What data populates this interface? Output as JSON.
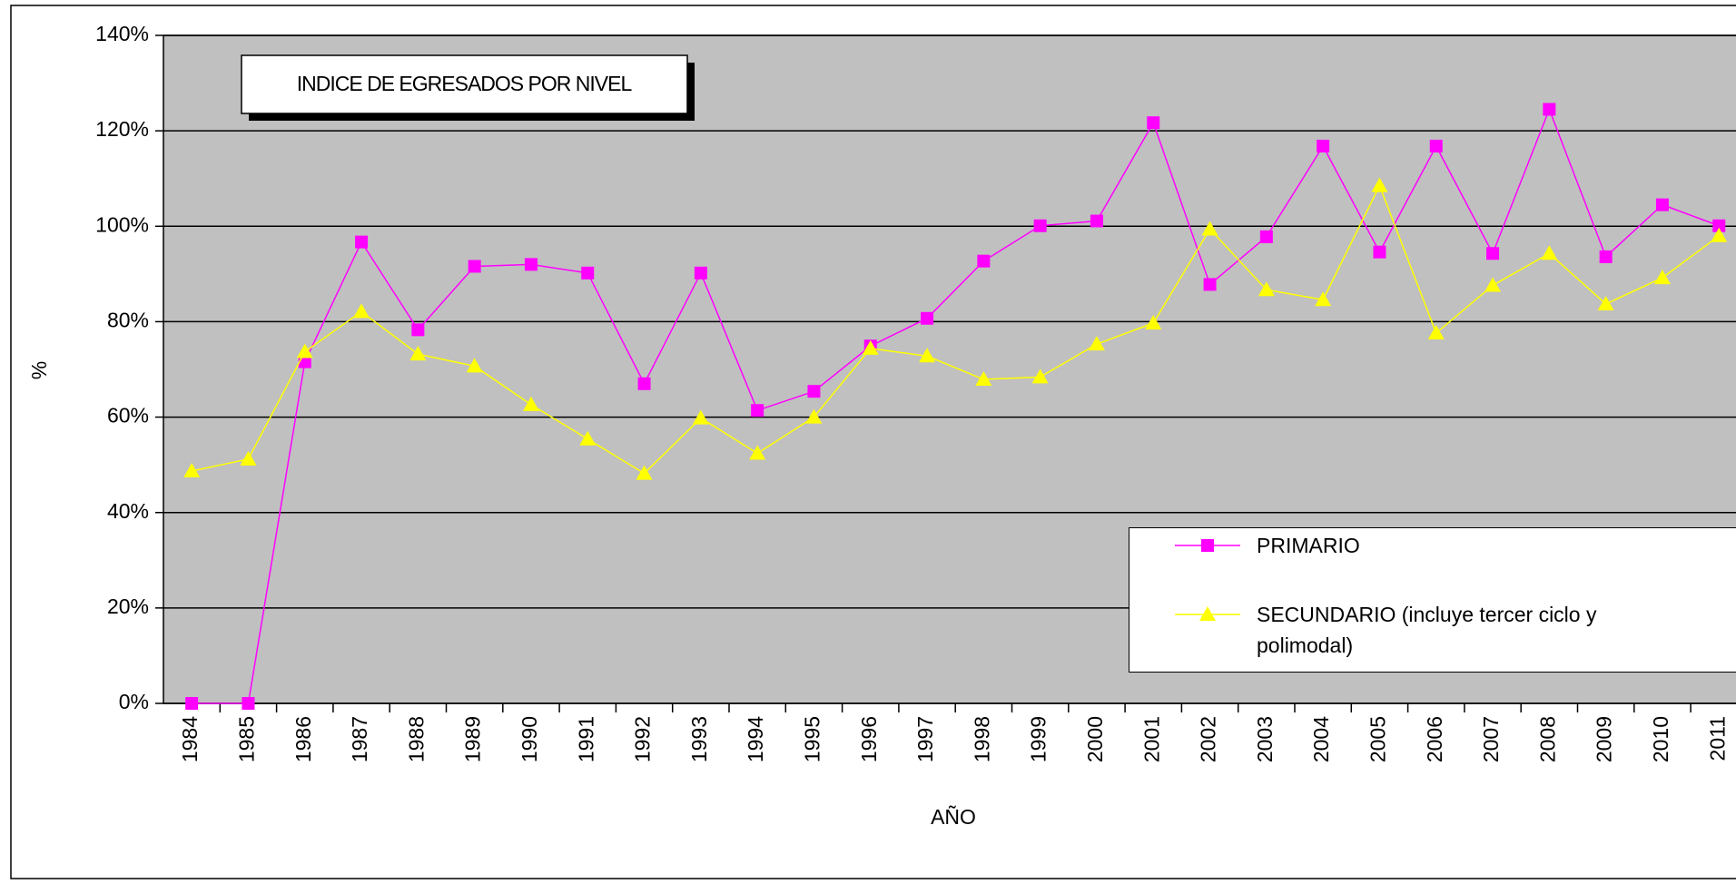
{
  "chart_data": {
    "type": "line",
    "title": "INDICE DE EGRESADOS POR NIVEL",
    "y_label": "%",
    "x_label": "AÑO",
    "categories": [
      "1984",
      "1985",
      "1986",
      "1987",
      "1988",
      "1989",
      "1990",
      "1991",
      "1992",
      "1993",
      "1994",
      "1995",
      "1996",
      "1997",
      "1998",
      "1999",
      "2000",
      "2001",
      "2002",
      "2003",
      "2004",
      "2005",
      "2006",
      "2007",
      "2008",
      "2009",
      "2010",
      "2011"
    ],
    "series": [
      {
        "name": "PRIMARIO",
        "color": "#ff00ff",
        "marker": "square",
        "values": [
          0,
          0,
          71.6,
          96.7,
          78.3,
          91.6,
          92.0,
          90.2,
          67.0,
          90.2,
          61.4,
          65.4,
          74.9,
          80.7,
          92.7,
          100.1,
          101.1,
          121.7,
          87.8,
          97.8,
          116.8,
          94.6,
          116.8,
          94.3,
          124.5,
          93.6,
          104.5,
          100.1
        ]
      },
      {
        "name": "SECUNDARIO (incluye tercer ciclo y polimodal)",
        "color": "#ffff00",
        "marker": "triangle",
        "values": [
          48.7,
          51.2,
          73.7,
          82.1,
          73.2,
          70.7,
          62.6,
          55.4,
          48.2,
          59.8,
          52.4,
          60.0,
          74.4,
          72.8,
          67.9,
          68.4,
          75.3,
          79.7,
          99.4,
          86.7,
          84.6,
          108.5,
          77.6,
          87.6,
          94.3,
          83.7,
          89.2,
          98.0
        ]
      }
    ],
    "ylim": [
      0,
      140
    ],
    "yticks": [
      {
        "value": 0,
        "label": "0%"
      },
      {
        "value": 20,
        "label": "20%"
      },
      {
        "value": 40,
        "label": "40%"
      },
      {
        "value": 60,
        "label": "60%"
      },
      {
        "value": 80,
        "label": "80%"
      },
      {
        "value": 100,
        "label": "100%"
      },
      {
        "value": 120,
        "label": "120%"
      },
      {
        "value": 140,
        "label": "140%"
      }
    ],
    "grid": true,
    "legend": "lower right",
    "plot_background": "#c0c0c0"
  }
}
